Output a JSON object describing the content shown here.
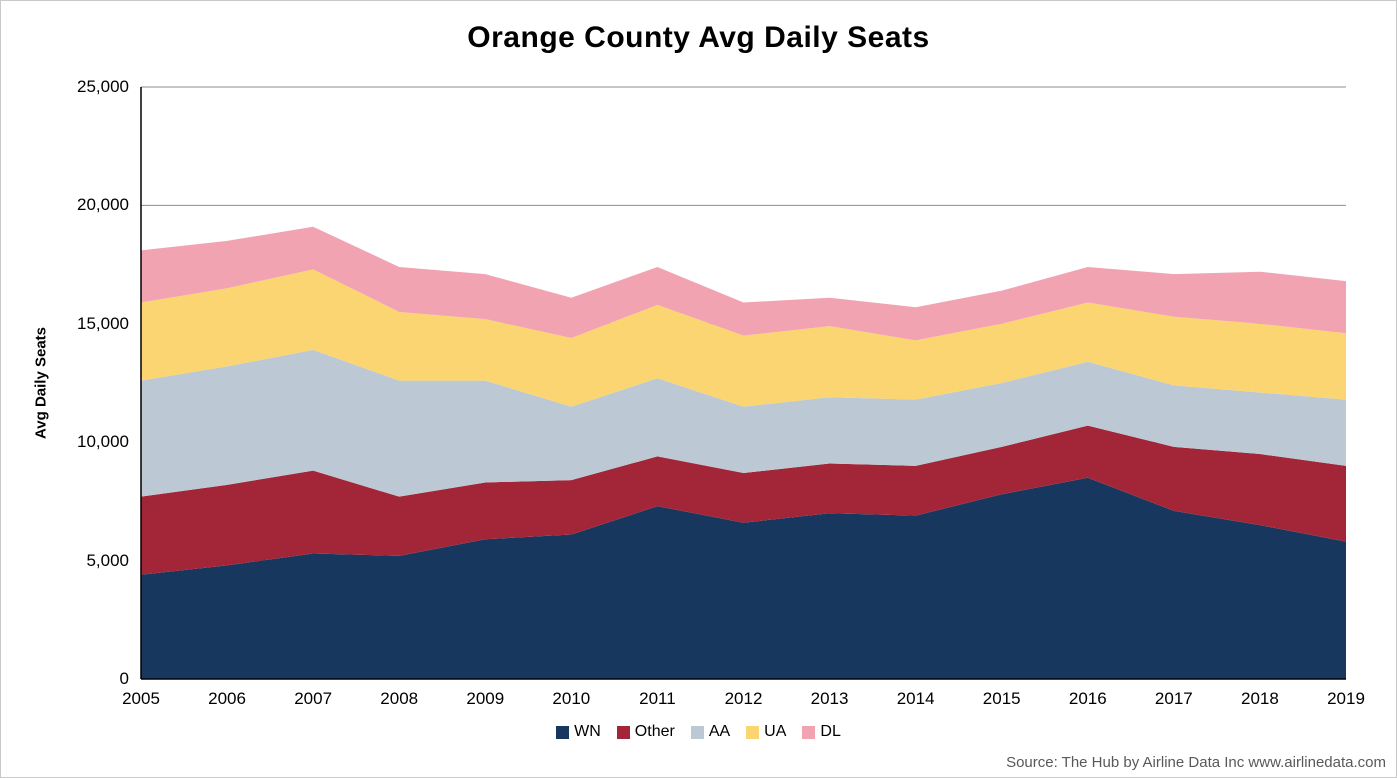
{
  "chart_data": {
    "type": "area",
    "stacked": true,
    "title": "Orange County Avg Daily Seats",
    "ylabel": "Avg Daily Seats",
    "xlabel": "",
    "ylim": [
      0,
      25000
    ],
    "ytick_step": 5000,
    "yticks": [
      "0",
      "5,000",
      "10,000",
      "15,000",
      "20,000",
      "25,000"
    ],
    "grid": true,
    "legend_position": "bottom",
    "categories": [
      "2005",
      "2006",
      "2007",
      "2008",
      "2009",
      "2010",
      "2011",
      "2012",
      "2013",
      "2014",
      "2015",
      "2016",
      "2017",
      "2018",
      "2019"
    ],
    "series": [
      {
        "name": "WN",
        "color": "#17375E",
        "values": [
          4400,
          4800,
          5300,
          5200,
          5900,
          6100,
          7300,
          6600,
          7000,
          6900,
          7800,
          8500,
          7100,
          6500,
          5800
        ]
      },
      {
        "name": "Other",
        "color": "#A32638",
        "values": [
          3300,
          3400,
          3500,
          2500,
          2400,
          2300,
          2100,
          2100,
          2100,
          2100,
          2000,
          2200,
          2700,
          3000,
          3200
        ]
      },
      {
        "name": "AA",
        "color": "#BCC9D4",
        "values": [
          4900,
          5000,
          5100,
          4900,
          4300,
          3100,
          3300,
          2800,
          2800,
          2800,
          2700,
          2700,
          2600,
          2600,
          2800
        ]
      },
      {
        "name": "UA",
        "color": "#FBD571",
        "values": [
          3300,
          3300,
          3400,
          2900,
          2600,
          2900,
          3100,
          3000,
          3000,
          2500,
          2500,
          2500,
          2900,
          2900,
          2800
        ]
      },
      {
        "name": "DL",
        "color": "#F2A3B2",
        "values": [
          2200,
          2000,
          1800,
          1900,
          1900,
          1700,
          1600,
          1400,
          1200,
          1400,
          1400,
          1500,
          1800,
          2200,
          2200
        ]
      }
    ]
  },
  "source": {
    "text": "Source: The Hub by Airline Data Inc www.airlinedata.com"
  }
}
